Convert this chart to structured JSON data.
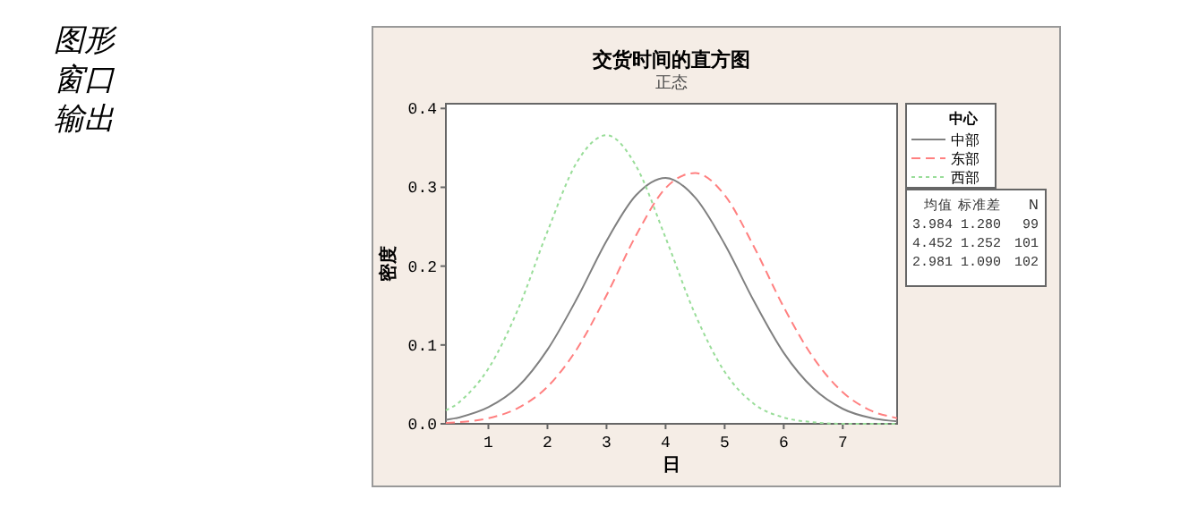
{
  "chart_data": {
    "type": "line",
    "title": "交货时间的直方图",
    "subtitle": "正态",
    "xlabel": "日",
    "ylabel": "密度",
    "legend_title": "中心",
    "legend": "right",
    "x": [
      0.28,
      0.5,
      1,
      1.5,
      2,
      2.5,
      3,
      3.5,
      4,
      4.5,
      5,
      5.5,
      6,
      6.5,
      7,
      7.5,
      7.92
    ],
    "series": [
      {
        "name": "中部",
        "color": "#808080",
        "line_style": "solid",
        "values": [
          0.005,
          0.008,
          0.021,
          0.047,
          0.094,
          0.159,
          0.232,
          0.29,
          0.312,
          0.287,
          0.228,
          0.155,
          0.09,
          0.045,
          0.019,
          0.007,
          0.003
        ]
      },
      {
        "name": "东部",
        "color": "#ff8080",
        "line_style": "dashed",
        "values": [
          0.001,
          0.002,
          0.007,
          0.02,
          0.047,
          0.095,
          0.163,
          0.239,
          0.299,
          0.318,
          0.29,
          0.224,
          0.148,
          0.084,
          0.04,
          0.016,
          0.007
        ]
      },
      {
        "name": "西部",
        "color": "#99dd99",
        "line_style": "dotted",
        "values": [
          0.017,
          0.027,
          0.07,
          0.145,
          0.244,
          0.332,
          0.366,
          0.327,
          0.236,
          0.139,
          0.066,
          0.025,
          0.008,
          0.002,
          0.0,
          0.0,
          0.0
        ]
      }
    ],
    "xlim": [
      0.28,
      7.92
    ],
    "ylim": [
      0,
      0.406
    ],
    "xticks": [
      1,
      2,
      3,
      4,
      5,
      6,
      7
    ],
    "yticks": [
      {
        "value": 0,
        "label": "0.0"
      },
      {
        "value": 0.1,
        "label": "0.1"
      },
      {
        "value": 0.2,
        "label": "0.2"
      },
      {
        "value": 0.3,
        "label": "0.3"
      },
      {
        "value": 0.4,
        "label": "0.4"
      }
    ],
    "grid": false,
    "marker": "none",
    "annotations": [
      "图形",
      "窗口",
      "输出",
      "均值 标准差 N",
      "3.984 1.280 99",
      "4.452 1.252 101",
      "2.981 1.090 102"
    ]
  }
}
